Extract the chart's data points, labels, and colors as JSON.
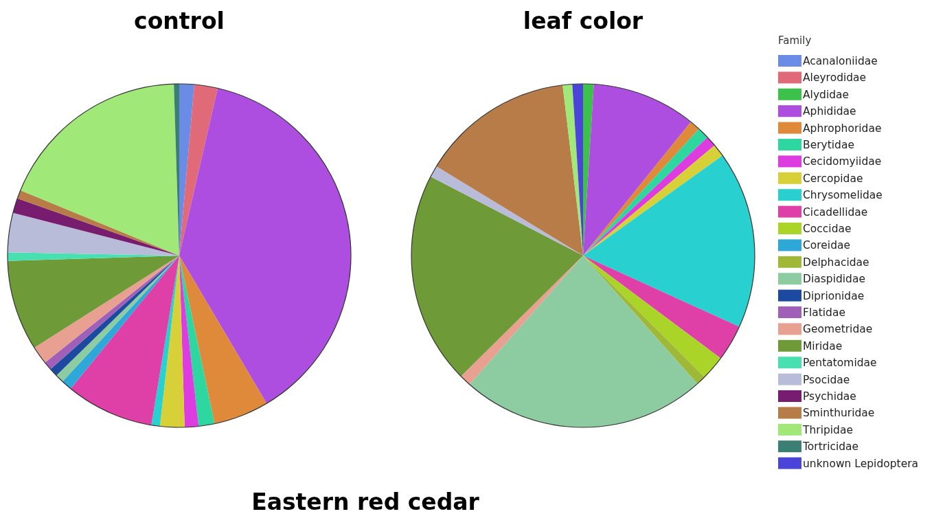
{
  "chart_data": [
    {
      "type": "pie",
      "title": "control",
      "legend": "right",
      "legend_title": "Family",
      "categories": [
        "Acanaloniidae",
        "Aleyrodidae",
        "Alydidae",
        "Aphididae",
        "Aphrophoridae",
        "Berytidae",
        "Cecidomyiidae",
        "Cercopidae",
        "Chrysomelidae",
        "Cicadellidae",
        "Coccidae",
        "Coreidae",
        "Delphacidae",
        "Diaspididae",
        "Diprionidae",
        "Flatidae",
        "Geometridae",
        "Miridae",
        "Pentatomidae",
        "Psocidae",
        "Psychidae",
        "Sminthuridae",
        "Thripidae",
        "Tortricidae",
        "unknown Lepidoptera"
      ],
      "values": [
        1.4,
        2.2,
        0,
        37.9,
        5.2,
        1.5,
        1.3,
        2.3,
        0.8,
        8.3,
        0,
        1,
        0,
        0.8,
        0.8,
        0.8,
        1.7,
        8.5,
        0.8,
        3.7,
        1.4,
        0.8,
        18.3,
        0.5,
        0
      ],
      "colors": [
        "#6a8be6",
        "#e06a78",
        "#3cc24a",
        "#ad4ee0",
        "#de8a3a",
        "#2ed6a0",
        "#dc3ce0",
        "#d8d038",
        "#28d0d0",
        "#de40a8",
        "#aad428",
        "#2ea8d8",
        "#a0b838",
        "#8ccca0",
        "#1c4aa0",
        "#a060b8",
        "#e8a090",
        "#6e9a38",
        "#48e0b0",
        "#b8bcd8",
        "#781c70",
        "#b87c48",
        "#a0e878",
        "#3a7e74",
        "#4a44d8"
      ]
    },
    {
      "type": "pie",
      "title": "leaf color",
      "legend": false,
      "annotations": [
        "Eastern red cedar"
      ],
      "categories": [
        null,
        null,
        null,
        null,
        null,
        null,
        null,
        null,
        null,
        null,
        null,
        null,
        null,
        null,
        null,
        null,
        null,
        null,
        null,
        null,
        null,
        null,
        null,
        null,
        null
      ],
      "values": [
        0,
        0,
        1,
        9.8,
        1,
        1.1,
        1,
        1.2,
        16.7,
        3.4,
        2.3,
        0,
        0.9,
        23.1,
        0,
        0,
        1.1,
        20,
        0,
        1.1,
        0,
        14.4,
        0.9,
        0,
        1
      ],
      "colors": [
        "#6a8be6",
        "#e06a78",
        "#3cc24a",
        "#ad4ee0",
        "#de8a3a",
        "#2ed6a0",
        "#dc3ce0",
        "#d8d038",
        "#28d0d0",
        "#de40a8",
        "#aad428",
        "#2ea8d8",
        "#a0b838",
        "#8ccca0",
        "#1c4aa0",
        "#a060b8",
        "#e8a090",
        "#6e9a38",
        "#48e0b0",
        "#b8bcd8",
        "#781c70",
        "#b87c48",
        "#a0e878",
        "#3a7e74",
        "#4a44d8"
      ]
    }
  ]
}
